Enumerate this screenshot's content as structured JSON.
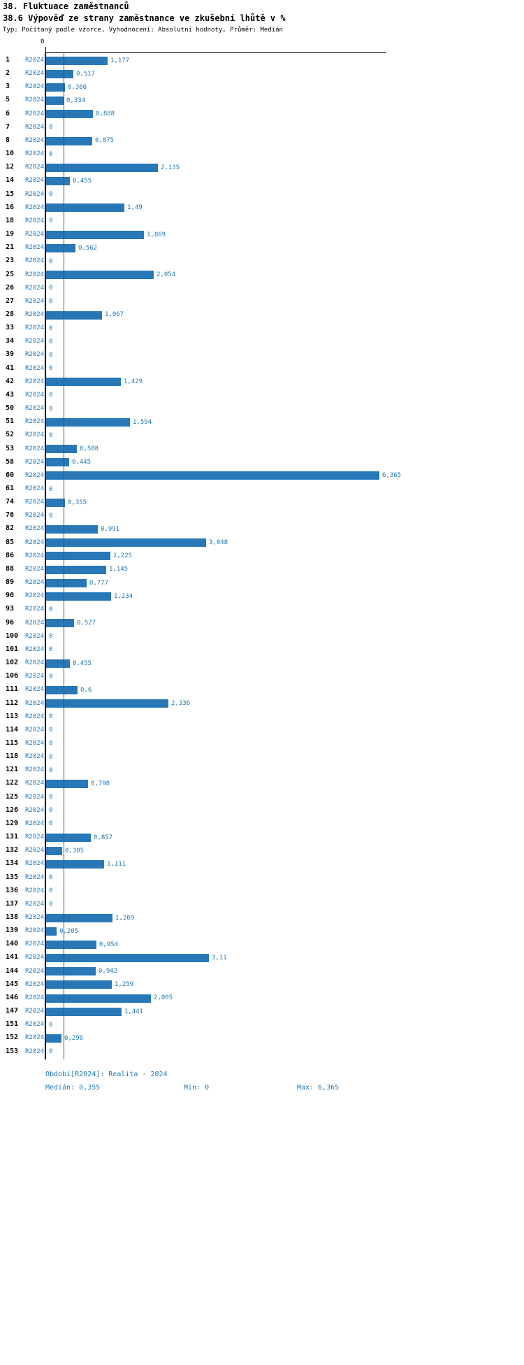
{
  "header": {
    "title1": "38. Fluktuace zaměstnanců",
    "title2": "38.6 Výpověď ze strany zaměstnance ve zkušební lhůtě v %",
    "subtitle": "Typ: Počítaný podle vzorce, Vyhodnocení: Absolutní hodnoty, Průměr: Medián"
  },
  "chart_data": {
    "type": "bar",
    "orientation": "horizontal",
    "series_label": "R2024",
    "axis_zero_label": "0",
    "xlim": [
      0,
      6.365
    ],
    "median_value": 0.355,
    "min_value": 0,
    "max_value": 6.365,
    "grid": false,
    "rows": [
      {
        "id": "1",
        "value": 1.177,
        "label": "1,177"
      },
      {
        "id": "2",
        "value": 0.517,
        "label": "0,517"
      },
      {
        "id": "3",
        "value": 0.366,
        "label": "0,366"
      },
      {
        "id": "5",
        "value": 0.334,
        "label": "0,334"
      },
      {
        "id": "6",
        "value": 0.888,
        "label": "0,888"
      },
      {
        "id": "7",
        "value": 0,
        "label": "0"
      },
      {
        "id": "8",
        "value": 0.875,
        "label": "0,875"
      },
      {
        "id": "10",
        "value": 0,
        "label": "0"
      },
      {
        "id": "12",
        "value": 2.135,
        "label": "2,135"
      },
      {
        "id": "14",
        "value": 0.455,
        "label": "0,455"
      },
      {
        "id": "15",
        "value": 0,
        "label": "0"
      },
      {
        "id": "16",
        "value": 1.49,
        "label": "1,49"
      },
      {
        "id": "18",
        "value": 0,
        "label": "0"
      },
      {
        "id": "19",
        "value": 1.869,
        "label": "1,869"
      },
      {
        "id": "21",
        "value": 0.562,
        "label": "0,562"
      },
      {
        "id": "23",
        "value": 0,
        "label": "0"
      },
      {
        "id": "25",
        "value": 2.054,
        "label": "2,054"
      },
      {
        "id": "26",
        "value": 0,
        "label": "0"
      },
      {
        "id": "27",
        "value": 0,
        "label": "0"
      },
      {
        "id": "28",
        "value": 1.067,
        "label": "1,067"
      },
      {
        "id": "33",
        "value": 0,
        "label": "0"
      },
      {
        "id": "34",
        "value": 0,
        "label": "0"
      },
      {
        "id": "39",
        "value": 0,
        "label": "0"
      },
      {
        "id": "41",
        "value": 0,
        "label": "0"
      },
      {
        "id": "42",
        "value": 1.429,
        "label": "1,429"
      },
      {
        "id": "43",
        "value": 0,
        "label": "0"
      },
      {
        "id": "50",
        "value": 0,
        "label": "0"
      },
      {
        "id": "51",
        "value": 1.594,
        "label": "1,594"
      },
      {
        "id": "52",
        "value": 0,
        "label": "0"
      },
      {
        "id": "53",
        "value": 0.588,
        "label": "0,588"
      },
      {
        "id": "58",
        "value": 0.445,
        "label": "0,445"
      },
      {
        "id": "60",
        "value": 6.365,
        "label": "6,365"
      },
      {
        "id": "61",
        "value": 0,
        "label": "0"
      },
      {
        "id": "74",
        "value": 0.355,
        "label": "0,355"
      },
      {
        "id": "76",
        "value": 0,
        "label": "0"
      },
      {
        "id": "82",
        "value": 0.991,
        "label": "0,991"
      },
      {
        "id": "85",
        "value": 3.048,
        "label": "3,048"
      },
      {
        "id": "86",
        "value": 1.225,
        "label": "1,225"
      },
      {
        "id": "88",
        "value": 1.145,
        "label": "1,145"
      },
      {
        "id": "89",
        "value": 0.777,
        "label": "0,777"
      },
      {
        "id": "90",
        "value": 1.234,
        "label": "1,234"
      },
      {
        "id": "93",
        "value": 0,
        "label": "0"
      },
      {
        "id": "96",
        "value": 0.527,
        "label": "0,527"
      },
      {
        "id": "100",
        "value": 0,
        "label": "0"
      },
      {
        "id": "101",
        "value": 0,
        "label": "0"
      },
      {
        "id": "102",
        "value": 0.455,
        "label": "0,455"
      },
      {
        "id": "106",
        "value": 0,
        "label": "0"
      },
      {
        "id": "111",
        "value": 0.6,
        "label": "0,6"
      },
      {
        "id": "112",
        "value": 2.336,
        "label": "2,336"
      },
      {
        "id": "113",
        "value": 0,
        "label": "0"
      },
      {
        "id": "114",
        "value": 0,
        "label": "0"
      },
      {
        "id": "115",
        "value": 0,
        "label": "0"
      },
      {
        "id": "118",
        "value": 0,
        "label": "0"
      },
      {
        "id": "121",
        "value": 0,
        "label": "0"
      },
      {
        "id": "122",
        "value": 0.798,
        "label": "0,798"
      },
      {
        "id": "125",
        "value": 0,
        "label": "0"
      },
      {
        "id": "126",
        "value": 0,
        "label": "0"
      },
      {
        "id": "129",
        "value": 0,
        "label": "0"
      },
      {
        "id": "131",
        "value": 0.857,
        "label": "0,857"
      },
      {
        "id": "132",
        "value": 0.305,
        "label": "0,305"
      },
      {
        "id": "134",
        "value": 1.111,
        "label": "1,111"
      },
      {
        "id": "135",
        "value": 0,
        "label": "0"
      },
      {
        "id": "136",
        "value": 0,
        "label": "0"
      },
      {
        "id": "137",
        "value": 0,
        "label": "0"
      },
      {
        "id": "138",
        "value": 1.269,
        "label": "1,269"
      },
      {
        "id": "139",
        "value": 0.205,
        "label": "0,205"
      },
      {
        "id": "140",
        "value": 0.954,
        "label": "0,954"
      },
      {
        "id": "141",
        "value": 3.11,
        "label": "3,11"
      },
      {
        "id": "144",
        "value": 0.942,
        "label": "0,942"
      },
      {
        "id": "145",
        "value": 1.259,
        "label": "1,259"
      },
      {
        "id": "146",
        "value": 2.005,
        "label": "2,005"
      },
      {
        "id": "147",
        "value": 1.441,
        "label": "1,441"
      },
      {
        "id": "151",
        "value": 0,
        "label": "0"
      },
      {
        "id": "152",
        "value": 0.296,
        "label": "0,296"
      },
      {
        "id": "153",
        "value": 0,
        "label": "0"
      }
    ]
  },
  "footer": {
    "period": "Období[R2024]: Realita - 2024",
    "median": "Medián: 0,355",
    "min": "Min: 0",
    "max": "Max: 6,365"
  },
  "colors": {
    "bar": "#2878b8",
    "text_blue": "#1f77b4",
    "axis": "#000000",
    "median_line": "#4d4d4d"
  }
}
